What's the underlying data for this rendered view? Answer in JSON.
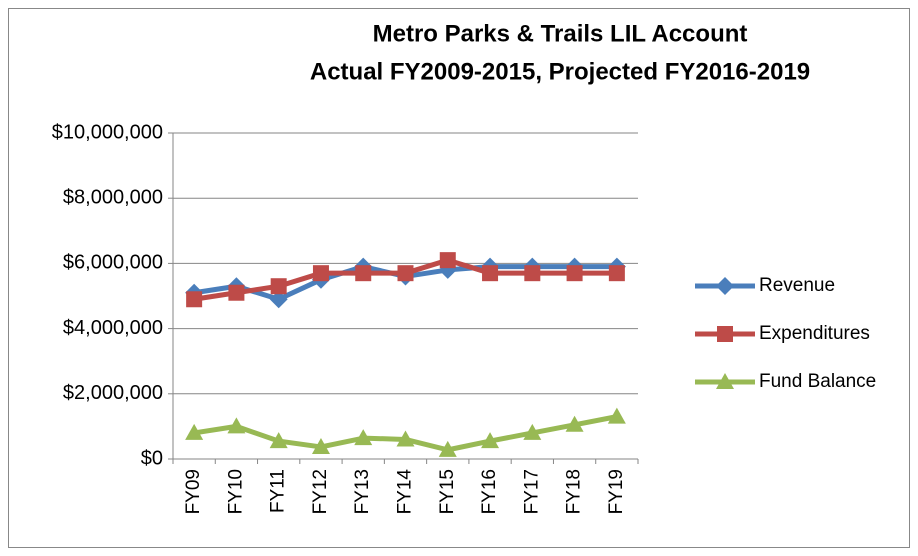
{
  "chart_data": {
    "type": "line",
    "title": [
      "Metro Parks & Trails LIL Account",
      "Actual FY2009-2015, Projected FY2016-2019"
    ],
    "categories": [
      "FY09",
      "FY10",
      "FY11",
      "FY12",
      "FY13",
      "FY14",
      "FY15",
      "FY16",
      "FY17",
      "FY18",
      "FY19"
    ],
    "series": [
      {
        "name": "Revenue",
        "color": "#4a7ebb",
        "marker": "diamond",
        "values": [
          5100000,
          5300000,
          4900000,
          5500000,
          5900000,
          5600000,
          5800000,
          5900000,
          5900000,
          5900000,
          5900000
        ]
      },
      {
        "name": "Expenditures",
        "color": "#be4b48",
        "marker": "square",
        "values": [
          4900000,
          5100000,
          5300000,
          5700000,
          5700000,
          5700000,
          6100000,
          5700000,
          5700000,
          5700000,
          5700000
        ]
      },
      {
        "name": "Fund Balance",
        "color": "#98b954",
        "marker": "triangle",
        "values": [
          800000,
          1000000,
          550000,
          370000,
          640000,
          600000,
          280000,
          550000,
          800000,
          1050000,
          1300000
        ]
      }
    ],
    "ylim": [
      0,
      10000000
    ],
    "yticks": [
      {
        "value": 0,
        "label": "$0"
      },
      {
        "value": 2000000,
        "label": "$2,000,000"
      },
      {
        "value": 4000000,
        "label": "$4,000,000"
      },
      {
        "value": 6000000,
        "label": "$6,000,000"
      },
      {
        "value": 8000000,
        "label": "$8,000,000"
      },
      {
        "value": 10000000,
        "label": "$10,000,000"
      }
    ],
    "grid": true,
    "legend": "right"
  }
}
